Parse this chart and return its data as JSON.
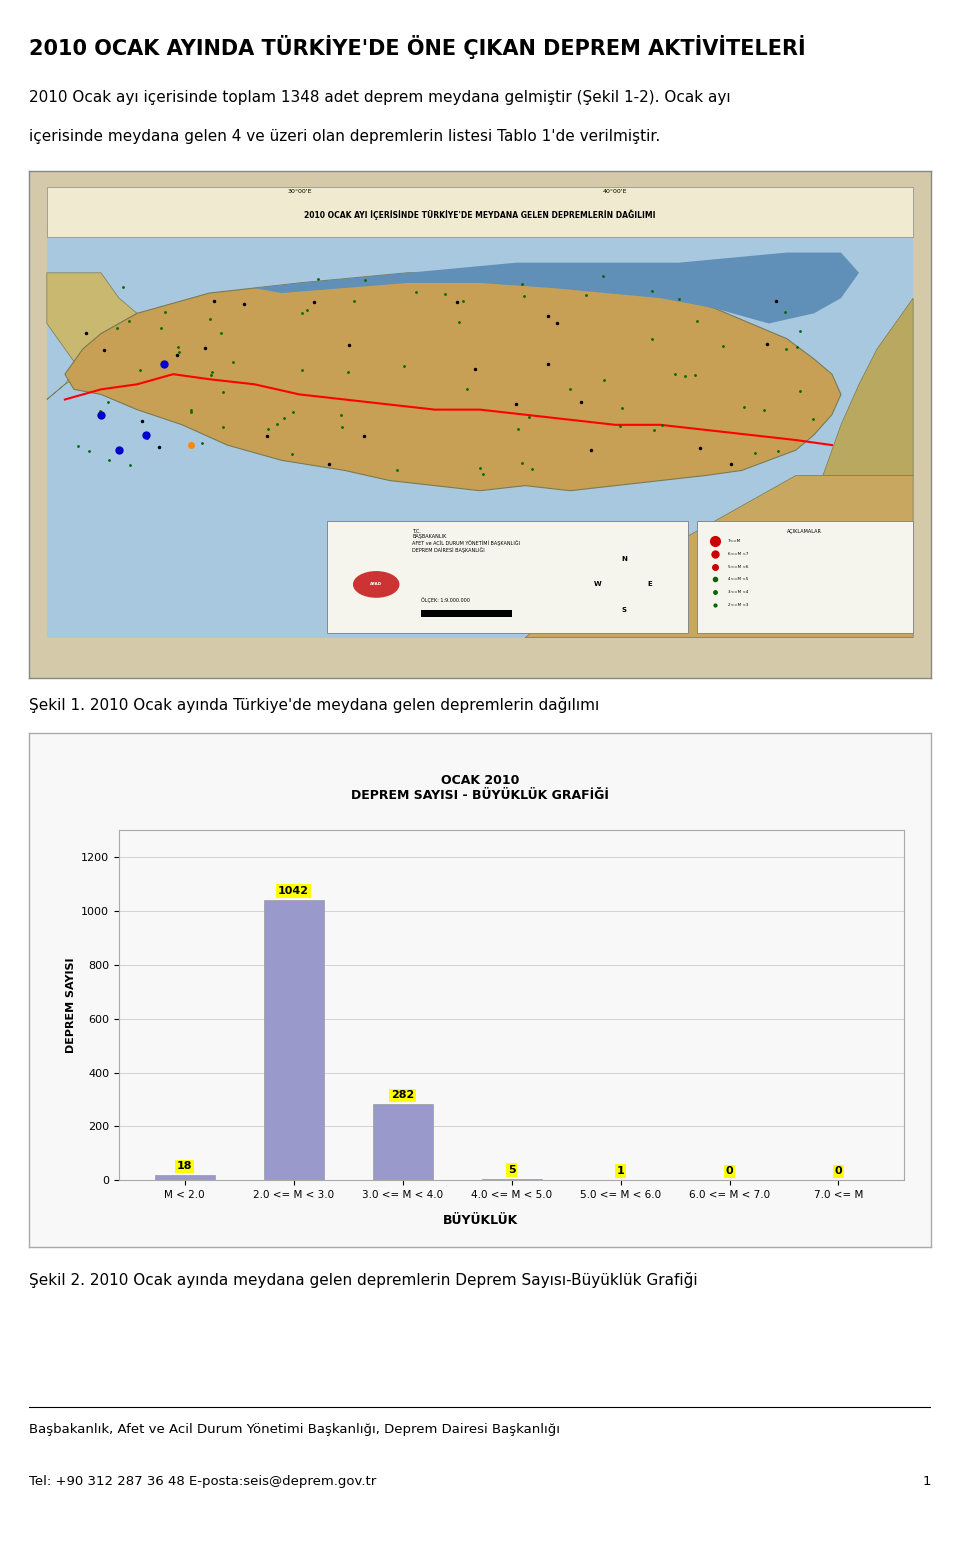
{
  "page_title": "2010 OCAK AYINDA TÜRKİYE'DE ÖNE ÇIKAN DEPREM AKTİVİTELERİ",
  "paragraph_line1": "2010 Ocak ayı içerisinde toplam 1348 adet deprem meydana gelmiştir (Şekil 1-2). Ocak ayı",
  "paragraph_line2": "içerisinde meydana gelen 4 ve üzeri olan depremlerin listesi Tablo 1'de verilmiştir.",
  "figure1_caption": "Şekil 1. 2010 Ocak ayında Türkiye'de meydana gelen depremlerin dağılımı",
  "figure2_caption": "Şekil 2. 2010 Ocak ayında meydana gelen depremlerin Deprem Sayısı-Büyüklük Grafiği",
  "footer_line1": "Başbakanlık, Afet ve Acil Durum Yönetimi Başkanlığı, Deprem Dairesi Başkanlığı",
  "footer_line2": "Tel: +90 312 287 36 48 E-posta:seis@deprem.gov.tr",
  "page_number": "1",
  "chart_title_line1": "OCAK 2010",
  "chart_title_line2": "DEPREM SAYISI - BÜYÜKLÜK GRAFİĞİ",
  "chart_xlabel": "BÜYÜKLÜK",
  "chart_ylabel": "DEPREM SAYISI",
  "chart_categories": [
    "M < 2.0",
    "2.0 <= M < 3.0",
    "3.0 <= M < 4.0",
    "4.0 <= M < 5.0",
    "5.0 <= M < 6.0",
    "6.0 <= M < 7.0",
    "7.0 <= M"
  ],
  "chart_values": [
    18,
    1042,
    282,
    5,
    1,
    0,
    0
  ],
  "bar_color": "#9999CC",
  "label_bg_color": "#FFFF00",
  "chart_ylim": [
    0,
    1300
  ],
  "chart_yticks": [
    0,
    200,
    400,
    600,
    800,
    1000,
    1200
  ],
  "bg_color": "#FFFFFF",
  "text_color": "#000000",
  "sea_color": "#B8D4E8",
  "land_color": "#C8A870",
  "map_bg_color": "#D4C9A8",
  "chart_area_bg": "#F8F8F8"
}
